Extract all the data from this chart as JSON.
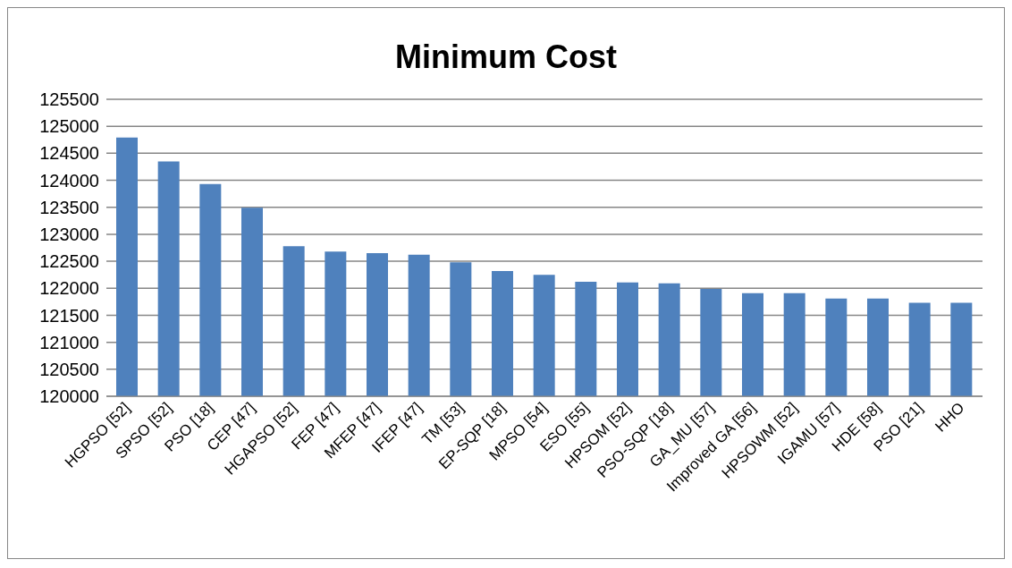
{
  "chart_data": {
    "type": "bar",
    "title": "Minimum Cost",
    "categories": [
      "HGPSO [52]",
      "SPSO [52]",
      "PSO [18]",
      "CEP [47]",
      "HGAPSO [52]",
      "FEP [47]",
      "MFEP [47]",
      "IFEP [47]",
      "TM [53]",
      "EP-SQP [18]",
      "MPSO [54]",
      "ESO [55]",
      "HPSOM [52]",
      "PSO-SQP [18]",
      "GA_MU [57]",
      "Improved GA [56]",
      "HPSOWM [52]",
      "IGAMU [57]",
      "HDE [58]",
      "PSO [21]",
      "HHO"
    ],
    "values": [
      124790,
      124350,
      123930,
      123490,
      122780,
      122680,
      122650,
      122620,
      122480,
      122320,
      122250,
      122120,
      122110,
      122090,
      121990,
      121910,
      121910,
      121810,
      121810,
      121730,
      121730
    ],
    "color": "#4f81bd",
    "ylim": [
      120000,
      125500
    ],
    "yticks": [
      120000,
      120500,
      121000,
      121500,
      122000,
      122500,
      123000,
      123500,
      124000,
      124500,
      125000,
      125500
    ],
    "grid": "y",
    "legend": false
  }
}
